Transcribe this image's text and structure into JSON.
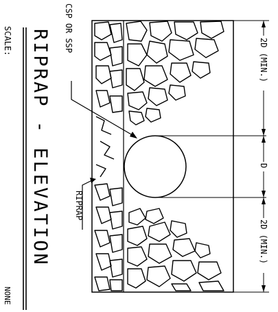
{
  "drawing": {
    "title": "RIPRAP - ELEVATION",
    "scale_label": "SCALE:",
    "scale_value": "NONE",
    "callouts": {
      "pipe": "CSP OR SSP",
      "riprap": "RIPRAP"
    },
    "dimensions": {
      "top": "2D (MIN.)",
      "middle": "D",
      "bottom": "2D (MIN.)"
    }
  }
}
